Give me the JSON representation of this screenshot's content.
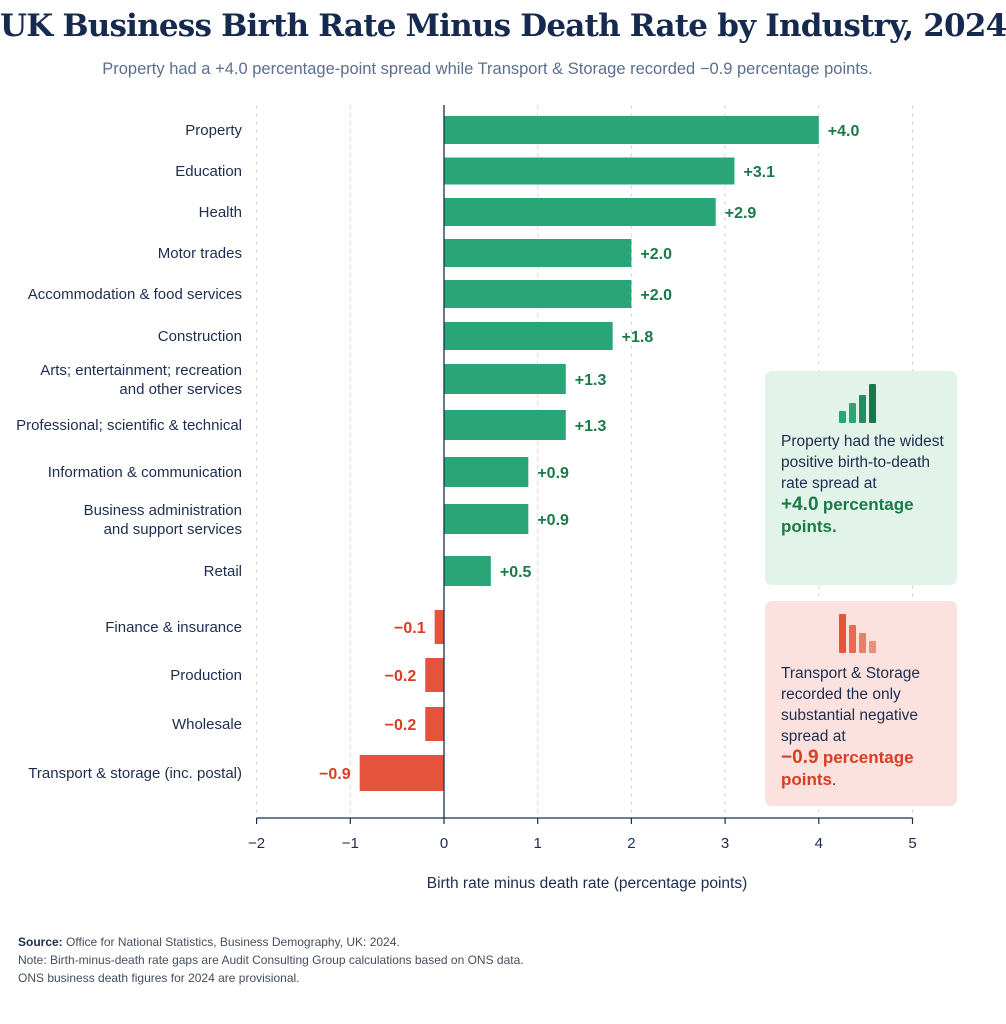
{
  "chart_data": {
    "type": "bar",
    "orientation": "horizontal",
    "title": "UK Business Birth Rate Minus Death Rate by Industry, 2024",
    "subtitle": "Property had a +4.0 percentage-point spread while Transport & Storage recorded −0.9 percentage points.",
    "xlabel": "Birth rate minus death rate (percentage points)",
    "xlim": [
      -2,
      5
    ],
    "xticks": [
      -2,
      -1,
      0,
      1,
      2,
      3,
      4,
      5
    ],
    "xtick_labels": [
      "−2",
      "−1",
      "0",
      "1",
      "2",
      "3",
      "4",
      "5"
    ],
    "grid": "vertical dashed",
    "categories": [
      [
        "Property"
      ],
      [
        "Education"
      ],
      [
        "Health"
      ],
      [
        "Motor trades"
      ],
      [
        "Accommodation & food services"
      ],
      [
        "Construction"
      ],
      [
        "Arts; entertainment; recreation",
        "and other services"
      ],
      [
        "Professional; scientific & technical"
      ],
      [
        "Information & communication"
      ],
      [
        "Business administration",
        "and support services"
      ],
      [
        "Retail"
      ],
      [
        "Finance & insurance"
      ],
      [
        "Production"
      ],
      [
        "Wholesale"
      ],
      [
        "Transport & storage (inc. postal)"
      ]
    ],
    "values": [
      4.0,
      3.1,
      2.9,
      2.0,
      2.0,
      1.8,
      1.3,
      1.3,
      0.9,
      0.9,
      0.5,
      -0.1,
      -0.2,
      -0.2,
      -0.9
    ],
    "value_labels": [
      "+4.0",
      "+3.1",
      "+2.9",
      "+2.0",
      "+2.0",
      "+1.8",
      "+1.3",
      "+1.3",
      "+0.9",
      "+0.9",
      "+0.5",
      "−0.1",
      "−0.2",
      "−0.2",
      "−0.9"
    ],
    "colors": {
      "positive_bar": "#2aa577",
      "positive_text": "#1a7a48",
      "negative_bar": "#e5533c",
      "negative_text": "#dc3b22"
    }
  },
  "callouts": {
    "positive": {
      "icon": "bar-chart-up-icon",
      "text": "Property had the widest positive birth-to-death rate spread at",
      "value": "+4.0",
      "unit": "percentage points.",
      "unit_line1": "percentage",
      "unit_line2": "points.",
      "color": "#1a7a48"
    },
    "negative": {
      "icon": "bar-chart-down-icon",
      "text": "Transport & Storage recorded the only substantial negative spread at",
      "value": "−0.9",
      "unit": "percentage points.",
      "unit_line1": "percentage",
      "unit_line2": "points",
      "unit_trailing": ".",
      "color": "#dc3b22"
    }
  },
  "footer": {
    "source_label": "Source:",
    "source_text": "Office for National Statistics, Business Demography, UK: 2024.",
    "note_line1": "Note: Birth-minus-death rate gaps are Audit Consulting Group calculations based on ONS data.",
    "note_line2": "ONS business death figures for 2024 are provisional."
  }
}
